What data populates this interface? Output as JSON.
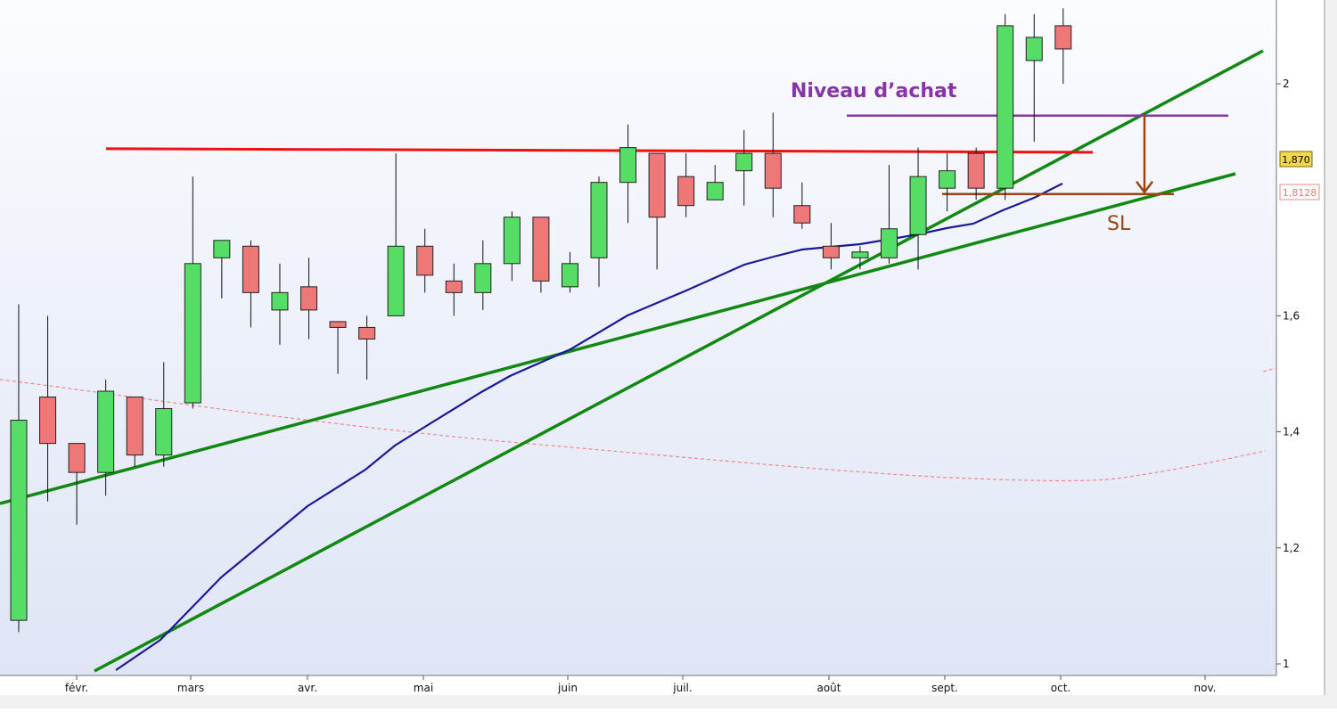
{
  "chart_data": {
    "type": "candlestick",
    "colors": {
      "up": "#55dd66",
      "down": "#ee7777",
      "resistance": "#ee1111",
      "buy_level": "#8833aa",
      "stop_loss": "#994411",
      "trendline": "#118811",
      "moving_average": "#1a1a99",
      "long_average": "#ee8888"
    },
    "x_tick_labels": [
      "févr.",
      "mars",
      "avr.",
      "mai",
      "juin",
      "juil.",
      "août",
      "sept.",
      "oct.",
      "nov."
    ],
    "y_tick_labels": [
      "1",
      "1,2",
      "1,4",
      "1,6",
      "2"
    ],
    "ylim": [
      0.99,
      2.14
    ],
    "candles": [
      {
        "open": 1.075,
        "high": 1.62,
        "low": 1.055,
        "close": 1.42
      },
      {
        "open": 1.46,
        "high": 1.6,
        "low": 1.28,
        "close": 1.38
      },
      {
        "open": 1.38,
        "high": 1.38,
        "low": 1.24,
        "close": 1.33
      },
      {
        "open": 1.33,
        "high": 1.49,
        "low": 1.29,
        "close": 1.47
      },
      {
        "open": 1.46,
        "high": 1.46,
        "low": 1.34,
        "close": 1.36
      },
      {
        "open": 1.36,
        "high": 1.52,
        "low": 1.34,
        "close": 1.44
      },
      {
        "open": 1.45,
        "high": 1.84,
        "low": 1.44,
        "close": 1.69
      },
      {
        "open": 1.7,
        "high": 1.73,
        "low": 1.63,
        "close": 1.73
      },
      {
        "open": 1.72,
        "high": 1.73,
        "low": 1.58,
        "close": 1.64
      },
      {
        "open": 1.61,
        "high": 1.69,
        "low": 1.55,
        "close": 1.64
      },
      {
        "open": 1.65,
        "high": 1.7,
        "low": 1.56,
        "close": 1.61
      },
      {
        "open": 1.59,
        "high": 1.59,
        "low": 1.5,
        "close": 1.58
      },
      {
        "open": 1.58,
        "high": 1.6,
        "low": 1.49,
        "close": 1.56
      },
      {
        "open": 1.6,
        "high": 1.88,
        "low": 1.6,
        "close": 1.72
      },
      {
        "open": 1.72,
        "high": 1.75,
        "low": 1.64,
        "close": 1.67
      },
      {
        "open": 1.66,
        "high": 1.69,
        "low": 1.6,
        "close": 1.64
      },
      {
        "open": 1.64,
        "high": 1.73,
        "low": 1.61,
        "close": 1.69
      },
      {
        "open": 1.69,
        "high": 1.78,
        "low": 1.66,
        "close": 1.77
      },
      {
        "open": 1.77,
        "high": 1.77,
        "low": 1.64,
        "close": 1.66
      },
      {
        "open": 1.65,
        "high": 1.71,
        "low": 1.64,
        "close": 1.69
      },
      {
        "open": 1.7,
        "high": 1.84,
        "low": 1.65,
        "close": 1.83
      },
      {
        "open": 1.83,
        "high": 1.93,
        "low": 1.76,
        "close": 1.89
      },
      {
        "open": 1.88,
        "high": 1.88,
        "low": 1.68,
        "close": 1.77
      },
      {
        "open": 1.84,
        "high": 1.88,
        "low": 1.77,
        "close": 1.79
      },
      {
        "open": 1.8,
        "high": 1.86,
        "low": 1.8,
        "close": 1.83
      },
      {
        "open": 1.85,
        "high": 1.92,
        "low": 1.79,
        "close": 1.88
      },
      {
        "open": 1.88,
        "high": 1.95,
        "low": 1.77,
        "close": 1.82
      },
      {
        "open": 1.79,
        "high": 1.83,
        "low": 1.75,
        "close": 1.76
      },
      {
        "open": 1.72,
        "high": 1.76,
        "low": 1.68,
        "close": 1.7
      },
      {
        "open": 1.7,
        "high": 1.72,
        "low": 1.68,
        "close": 1.71
      },
      {
        "open": 1.7,
        "high": 1.86,
        "low": 1.69,
        "close": 1.75
      },
      {
        "open": 1.74,
        "high": 1.89,
        "low": 1.68,
        "close": 1.84
      },
      {
        "open": 1.82,
        "high": 1.88,
        "low": 1.78,
        "close": 1.85
      },
      {
        "open": 1.88,
        "high": 1.89,
        "low": 1.8,
        "close": 1.82
      },
      {
        "open": 1.82,
        "high": 2.12,
        "low": 1.8,
        "close": 2.1
      },
      {
        "open": 2.04,
        "high": 2.12,
        "low": 1.9,
        "close": 2.08
      },
      {
        "open": 2.1,
        "high": 2.13,
        "low": 2.0,
        "close": 2.06
      }
    ],
    "price_label": "1,870",
    "average_label": "1,8128",
    "annotations": {
      "buy_level": "Niveau d’achat",
      "stop_loss": "SL"
    },
    "resistance_level": 1.885,
    "buy_level": 1.945,
    "stop_loss_level": 1.81,
    "grid": false
  }
}
